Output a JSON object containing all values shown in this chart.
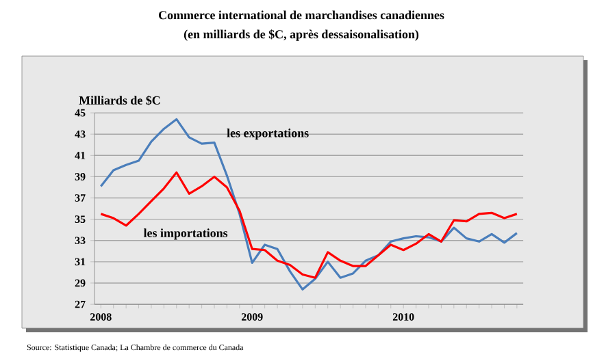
{
  "chart_data": {
    "type": "line",
    "title": "Commerce international de marchandises canadiennes",
    "subtitle": "(en milliards de $C, après dessaisonalisation)",
    "ylabel": "Milliards de $C",
    "annotations": [
      "Source: Statistique Canada; La Chambre de commerce du Canada"
    ],
    "categories": [
      "2008",
      null,
      null,
      null,
      null,
      null,
      null,
      null,
      null,
      null,
      null,
      null,
      "2009",
      null,
      null,
      null,
      null,
      null,
      null,
      null,
      null,
      null,
      null,
      null,
      "2010",
      null,
      null,
      null,
      null,
      null,
      null,
      null,
      null,
      null
    ],
    "series": [
      {
        "name": "les exportations",
        "color": "#4a7ebb",
        "values": [
          38.1,
          39.6,
          40.1,
          40.5,
          42.3,
          43.5,
          44.4,
          42.7,
          42.1,
          42.2,
          39.1,
          35.5,
          30.9,
          32.6,
          32.2,
          30.1,
          28.4,
          29.4,
          31.0,
          29.5,
          29.9,
          31.1,
          31.6,
          32.9,
          33.2,
          33.4,
          33.3,
          32.9,
          34.2,
          33.2,
          32.9,
          33.6,
          32.8,
          33.7
        ]
      },
      {
        "name": "les importations",
        "color": "#ff0000",
        "values": [
          35.5,
          35.1,
          34.4,
          35.5,
          36.7,
          37.9,
          39.4,
          37.4,
          38.1,
          39.0,
          38.0,
          35.8,
          32.2,
          32.1,
          31.1,
          30.7,
          29.8,
          29.5,
          31.9,
          31.1,
          30.6,
          30.6,
          31.6,
          32.6,
          32.1,
          32.7,
          33.6,
          32.9,
          34.9,
          34.8,
          35.5,
          35.6,
          35.1,
          35.5
        ]
      }
    ],
    "ylim": [
      27,
      45
    ],
    "yticks": [
      27,
      29,
      31,
      33,
      35,
      37,
      39,
      41,
      43,
      45
    ],
    "grid": "y",
    "marker": "none",
    "line_style": "solid"
  }
}
